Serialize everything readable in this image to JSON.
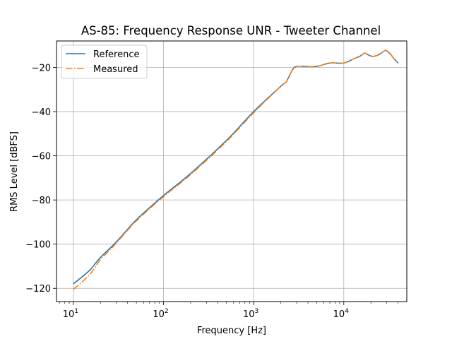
{
  "chart_data": {
    "type": "line",
    "title": "AS-85: Frequency Response UNR - Tweeter Channel",
    "xlabel": "Frequency [Hz]",
    "ylabel": "RMS Level [dBFS]",
    "xscale": "log",
    "xlim": [
      6.5,
      50000
    ],
    "ylim": [
      -126,
      -8
    ],
    "x_ticks": [
      10,
      100,
      1000,
      10000
    ],
    "x_tick_labels": [
      {
        "base": "10",
        "exp": "1"
      },
      {
        "base": "10",
        "exp": "2"
      },
      {
        "base": "10",
        "exp": "3"
      },
      {
        "base": "10",
        "exp": "4"
      }
    ],
    "y_ticks": [
      -120,
      -100,
      -80,
      -60,
      -40,
      -20
    ],
    "y_tick_labels": [
      "−120",
      "−100",
      "−80",
      "−60",
      "−40",
      "−20"
    ],
    "grid": true,
    "legend": "upper-left",
    "series": [
      {
        "name": "Reference",
        "color": "#1f77b4",
        "style": "solid",
        "x": [
          10,
          15,
          20,
          30,
          50,
          100,
          200,
          500,
          1000,
          2000,
          2300,
          2700,
          3000,
          3500,
          5000,
          7000,
          10000,
          13000,
          15000,
          17000,
          18000,
          21000,
          25000,
          28000,
          30000,
          33000,
          36000,
          40000
        ],
        "y": [
          -118,
          -112,
          -106,
          -99,
          -89,
          -78,
          -68,
          -53,
          -40,
          -28.5,
          -26.5,
          -21,
          -19.5,
          -19.5,
          -19.5,
          -18,
          -18,
          -16,
          -15,
          -13.5,
          -14,
          -15,
          -14,
          -12.5,
          -12.5,
          -14,
          -16,
          -18
        ]
      },
      {
        "name": "Measured",
        "color": "#ff7f0e",
        "style": "dashdot",
        "x": [
          10,
          15,
          20,
          25,
          30,
          50,
          100,
          200,
          500,
          1000,
          2000,
          2300,
          2700,
          3000,
          3500,
          5000,
          7000,
          10000,
          13000,
          15000,
          17000,
          18000,
          21000,
          25000,
          28000,
          30000,
          33000,
          36000,
          40000
        ],
        "y": [
          -120.5,
          -114,
          -107,
          -103,
          -99.5,
          -89.5,
          -78.5,
          -68.5,
          -53.5,
          -40.5,
          -28.5,
          -26.5,
          -21,
          -19.5,
          -19.5,
          -19.5,
          -18,
          -18,
          -16,
          -15,
          -13.5,
          -14,
          -15,
          -14,
          -12.5,
          -12.5,
          -14,
          -16,
          -18
        ]
      }
    ]
  }
}
